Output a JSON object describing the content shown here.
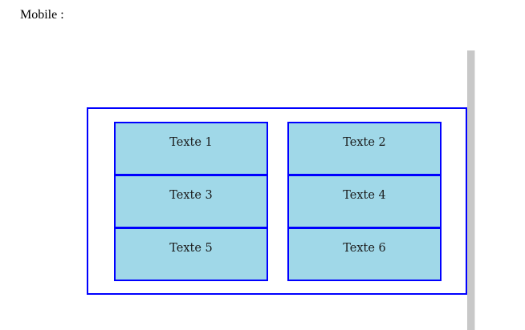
{
  "page": {
    "label": "Mobile :"
  },
  "grid": {
    "items": [
      {
        "text": "Texte 1"
      },
      {
        "text": "Texte 2"
      },
      {
        "text": "Texte 3"
      },
      {
        "text": "Texte 4"
      },
      {
        "text": "Texte 5"
      },
      {
        "text": "Texte 6"
      }
    ]
  },
  "colors": {
    "border": "#0000ff",
    "cell_background": "#a0d8e8",
    "scrollbar": "#c8c8c8"
  }
}
